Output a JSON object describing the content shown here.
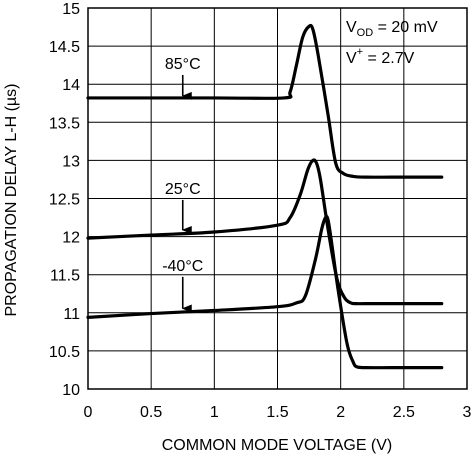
{
  "chart_data": {
    "type": "line",
    "xlabel": "COMMON MODE VOLTAGE (V)",
    "ylabel": "PROPAGATION DELAY L-H (µs)",
    "xlim": [
      0,
      3
    ],
    "ylim": [
      10,
      15
    ],
    "xticks": [
      "0",
      "0.5",
      "1",
      "1.5",
      "2",
      "2.5",
      "3"
    ],
    "yticks": [
      "10",
      "10.5",
      "11",
      "11.5",
      "12",
      "12.5",
      "13",
      "13.5",
      "14",
      "14.5",
      "15"
    ],
    "grid": true,
    "conditions": {
      "vod": {
        "sym": "V",
        "sub": "OD",
        "val": " = 20 mV"
      },
      "vplus": {
        "sym": "V",
        "sup": "+",
        "val": " = 2.7V"
      }
    },
    "series": [
      {
        "name": "85°C",
        "x": [
          0.0,
          1.0,
          1.55,
          1.6,
          1.65,
          1.7,
          1.75,
          1.78,
          1.82,
          1.9,
          1.96,
          2.02,
          2.1,
          2.2,
          2.4,
          2.6,
          2.8
        ],
        "y": [
          13.82,
          13.82,
          13.82,
          13.9,
          14.25,
          14.62,
          14.76,
          14.72,
          14.4,
          13.6,
          12.97,
          12.83,
          12.79,
          12.78,
          12.78,
          12.78,
          12.78
        ]
      },
      {
        "name": "25°C",
        "x": [
          0.0,
          0.5,
          1.0,
          1.5,
          1.6,
          1.68,
          1.74,
          1.78,
          1.81,
          1.84,
          1.9,
          1.97,
          2.03,
          2.08,
          2.12,
          2.2,
          2.4,
          2.6,
          2.8
        ],
        "y": [
          11.98,
          12.02,
          12.06,
          12.15,
          12.25,
          12.55,
          12.88,
          13.0,
          12.96,
          12.75,
          12.1,
          11.45,
          11.2,
          11.13,
          11.12,
          11.12,
          11.12,
          11.12,
          11.12
        ]
      },
      {
        "name": "-40°C",
        "x": [
          0.0,
          0.5,
          1.0,
          1.5,
          1.65,
          1.72,
          1.8,
          1.85,
          1.88,
          1.9,
          1.93,
          1.98,
          2.05,
          2.1,
          2.13,
          2.2,
          2.4,
          2.6,
          2.8
        ],
        "y": [
          10.94,
          10.99,
          11.03,
          11.08,
          11.13,
          11.22,
          11.7,
          12.1,
          12.25,
          12.22,
          11.9,
          11.3,
          10.6,
          10.35,
          10.29,
          10.28,
          10.28,
          10.28,
          10.28
        ]
      }
    ],
    "annotations": [
      {
        "text": "85°C",
        "x": 0.75,
        "y": 14.2,
        "arrow_to_y": 13.82
      },
      {
        "text": "25°C",
        "x": 0.75,
        "y": 12.56,
        "arrow_to_y": 12.06
      },
      {
        "text": "-40°C",
        "x": 0.75,
        "y": 11.55,
        "arrow_to_y": 11.03
      }
    ]
  }
}
